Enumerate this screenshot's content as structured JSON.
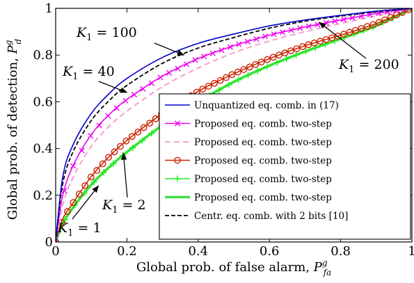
{
  "chart_data": {
    "type": "line",
    "xlabel": "Global prob. of false alarm, P_fa^g",
    "ylabel": "Global prob. of detection, P_d^g",
    "xlim": [
      0,
      1
    ],
    "ylim": [
      0,
      1
    ],
    "xticks": [
      "0",
      "0.2",
      "0.4",
      "0.6",
      "0.8",
      "1"
    ],
    "yticks": [
      "0",
      "0.2",
      "0.4",
      "0.6",
      "0.8",
      "1"
    ],
    "grid": false,
    "legend_position": "bottom-right",
    "series": [
      {
        "name": "Unquantized eq. comb. in (17)",
        "color": "#0000cc",
        "style": "solid",
        "marker": "none",
        "x": [
          0,
          0.02,
          0.05,
          0.1,
          0.15,
          0.2,
          0.3,
          0.4,
          0.5,
          0.6,
          0.7,
          0.8,
          0.9,
          1.0
        ],
        "y": [
          0,
          0.28,
          0.42,
          0.55,
          0.635,
          0.7,
          0.79,
          0.85,
          0.89,
          0.925,
          0.95,
          0.97,
          0.988,
          1.0
        ]
      },
      {
        "name": "Proposed eq. comb. two-step",
        "color": "#ee00ee",
        "style": "solid",
        "marker": "x",
        "x": [
          0,
          0.02,
          0.05,
          0.1,
          0.15,
          0.2,
          0.3,
          0.4,
          0.5,
          0.6,
          0.7,
          0.8,
          0.9,
          1.0
        ],
        "y": [
          0,
          0.2,
          0.33,
          0.46,
          0.545,
          0.61,
          0.71,
          0.785,
          0.84,
          0.885,
          0.92,
          0.95,
          0.978,
          1.0
        ]
      },
      {
        "name": "Proposed eq. comb. two-step",
        "color": "#f4a6cf",
        "style": "dashed",
        "marker": "none",
        "x": [
          0,
          0.02,
          0.05,
          0.1,
          0.15,
          0.2,
          0.3,
          0.4,
          0.5,
          0.6,
          0.7,
          0.8,
          0.9,
          1.0
        ],
        "y": [
          0,
          0.16,
          0.28,
          0.41,
          0.495,
          0.56,
          0.665,
          0.745,
          0.81,
          0.86,
          0.9,
          0.935,
          0.968,
          1.0
        ]
      },
      {
        "name": "Proposed eq. comb. two-step",
        "color": "#cc2200",
        "style": "solid",
        "marker": "o",
        "x": [
          0,
          0.02,
          0.05,
          0.1,
          0.15,
          0.2,
          0.3,
          0.4,
          0.5,
          0.6,
          0.7,
          0.8,
          0.9,
          1.0
        ],
        "y": [
          0,
          0.1,
          0.17,
          0.28,
          0.365,
          0.435,
          0.55,
          0.645,
          0.72,
          0.785,
          0.84,
          0.885,
          0.935,
          1.0
        ]
      },
      {
        "name": "Proposed eq. comb. two-step",
        "color": "#22ee22",
        "style": "solid",
        "marker": "+",
        "x": [
          0,
          0.02,
          0.05,
          0.1,
          0.15,
          0.2,
          0.3,
          0.4,
          0.5,
          0.6,
          0.7,
          0.8,
          0.9,
          1.0
        ],
        "y": [
          0,
          0.08,
          0.15,
          0.245,
          0.32,
          0.385,
          0.5,
          0.6,
          0.685,
          0.755,
          0.815,
          0.87,
          0.925,
          1.0
        ]
      },
      {
        "name": "Proposed eq. comb. two-step",
        "color": "#44dd44",
        "style": "thick",
        "marker": "none",
        "x": [
          0,
          0.02,
          0.05,
          0.1,
          0.15,
          0.2,
          0.3,
          0.4,
          0.5,
          0.6,
          0.7,
          0.8,
          0.9,
          1.0
        ],
        "y": [
          0,
          0.08,
          0.15,
          0.245,
          0.32,
          0.385,
          0.5,
          0.6,
          0.685,
          0.755,
          0.815,
          0.87,
          0.925,
          1.0
        ]
      },
      {
        "name": "Centr. eq. comb. with 2 bits [10]",
        "color": "#000000",
        "style": "dashed",
        "marker": "none",
        "x": [
          0,
          0.02,
          0.05,
          0.1,
          0.15,
          0.2,
          0.3,
          0.4,
          0.5,
          0.6,
          0.7,
          0.8,
          0.9,
          1.0
        ],
        "y": [
          0,
          0.25,
          0.39,
          0.52,
          0.605,
          0.67,
          0.765,
          0.83,
          0.875,
          0.915,
          0.945,
          0.967,
          0.985,
          1.0
        ]
      }
    ],
    "annotations": [
      {
        "text": "K_1 = 100",
        "target_x": 0.36,
        "target_y": 0.8
      },
      {
        "text": "K_1 = 40",
        "target_x": 0.2,
        "target_y": 0.64
      },
      {
        "text": "K_1 = 200",
        "target_x": 0.74,
        "target_y": 0.94
      },
      {
        "text": "K_1 = 2",
        "target_x": 0.19,
        "target_y": 0.38
      },
      {
        "text": "K_1 = 1",
        "target_x": 0.12,
        "target_y": 0.24
      }
    ]
  }
}
